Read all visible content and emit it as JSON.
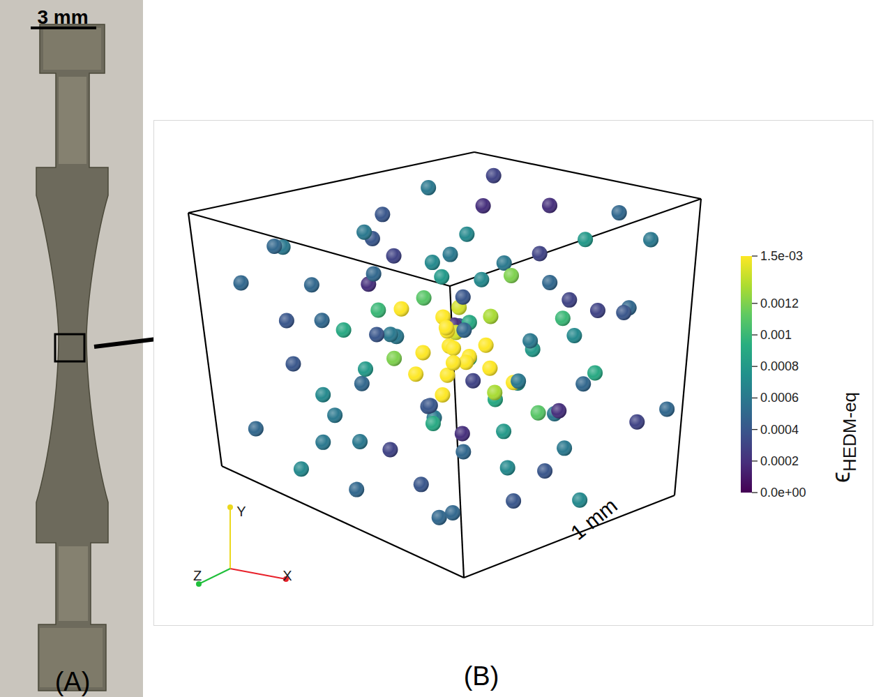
{
  "panel_a": {
    "panel_label": "(A)",
    "scale_bar": "3 mm"
  },
  "chart_data": {
    "type": "scatter3d",
    "panel_label": "(B)",
    "box_label": "1 mm",
    "axes": [
      "X",
      "Y",
      "Z"
    ],
    "colorbar": {
      "title": "ϵ",
      "title_subscript": "HEDM-eq",
      "range": [
        0,
        0.0015
      ],
      "ticks": [
        {
          "value": 0,
          "label": "0.0e+00"
        },
        0.0002,
        0.0004,
        0.0006,
        0.0008,
        0.001,
        0.0012,
        {
          "value": 0.0015,
          "label": "1.5e-03"
        }
      ]
    },
    "points": [
      {
        "x": 0.5,
        "y": 0.52,
        "z": 0.48,
        "value": 0.0015
      },
      {
        "x": 0.45,
        "y": 0.55,
        "z": 0.52,
        "value": 0.0015
      },
      {
        "x": 0.55,
        "y": 0.47,
        "z": 0.5,
        "value": 0.0015
      },
      {
        "x": 0.48,
        "y": 0.45,
        "z": 0.58,
        "value": 0.0015
      },
      {
        "x": 0.52,
        "y": 0.6,
        "z": 0.45,
        "value": 0.0015
      },
      {
        "x": 0.42,
        "y": 0.48,
        "z": 0.45,
        "value": 0.0015
      },
      {
        "x": 0.58,
        "y": 0.55,
        "z": 0.42,
        "value": 0.0015
      },
      {
        "x": 0.47,
        "y": 0.4,
        "z": 0.5,
        "value": 0.0015
      },
      {
        "x": 0.53,
        "y": 0.5,
        "z": 0.6,
        "value": 0.0015
      },
      {
        "x": 0.4,
        "y": 0.58,
        "z": 0.55,
        "value": 0.0015
      },
      {
        "x": 0.6,
        "y": 0.45,
        "z": 0.55,
        "value": 0.0015
      },
      {
        "x": 0.5,
        "y": 0.65,
        "z": 0.52,
        "value": 0.0014
      },
      {
        "x": 0.44,
        "y": 0.42,
        "z": 0.4,
        "value": 0.0015
      },
      {
        "x": 0.57,
        "y": 0.62,
        "z": 0.58,
        "value": 0.0013
      },
      {
        "x": 0.38,
        "y": 0.5,
        "z": 0.62,
        "value": 0.0014
      },
      {
        "x": 0.62,
        "y": 0.52,
        "z": 0.38,
        "value": 0.0015
      },
      {
        "x": 0.5,
        "y": 0.35,
        "z": 0.45,
        "value": 0.0015
      },
      {
        "x": 0.35,
        "y": 0.45,
        "z": 0.4,
        "value": 0.0012
      },
      {
        "x": 0.65,
        "y": 0.4,
        "z": 0.6,
        "value": 0.0015
      },
      {
        "x": 0.46,
        "y": 0.7,
        "z": 0.42,
        "value": 0.0011
      },
      {
        "x": 0.55,
        "y": 0.33,
        "z": 0.62,
        "value": 0.0013
      },
      {
        "x": 0.3,
        "y": 0.6,
        "z": 0.48,
        "value": 0.0015
      },
      {
        "x": 0.1,
        "y": 0.85,
        "z": 0.2,
        "value": 0.0005
      },
      {
        "x": 0.15,
        "y": 0.9,
        "z": 0.55,
        "value": 0.0004
      },
      {
        "x": 0.22,
        "y": 0.78,
        "z": 0.8,
        "value": 0.0007
      },
      {
        "x": 0.08,
        "y": 0.7,
        "z": 0.65,
        "value": 0.0003
      },
      {
        "x": 0.3,
        "y": 0.92,
        "z": 0.35,
        "value": 0.0006
      },
      {
        "x": 0.35,
        "y": 0.8,
        "z": 0.1,
        "value": 0.0005
      },
      {
        "x": 0.4,
        "y": 0.95,
        "z": 0.7,
        "value": 0.0002
      },
      {
        "x": 0.18,
        "y": 0.6,
        "z": 0.15,
        "value": 0.0004
      },
      {
        "x": 0.25,
        "y": 0.65,
        "z": 0.92,
        "value": 0.0006
      },
      {
        "x": 0.05,
        "y": 0.5,
        "z": 0.4,
        "value": 0.0005
      },
      {
        "x": 0.12,
        "y": 0.4,
        "z": 0.85,
        "value": 0.0002
      },
      {
        "x": 0.2,
        "y": 0.3,
        "z": 0.25,
        "value": 0.0007
      },
      {
        "x": 0.28,
        "y": 0.2,
        "z": 0.6,
        "value": 0.0004
      },
      {
        "x": 0.06,
        "y": 0.15,
        "z": 0.1,
        "value": 0.0005
      },
      {
        "x": 0.15,
        "y": 0.08,
        "z": 0.75,
        "value": 0.0006
      },
      {
        "x": 0.32,
        "y": 0.1,
        "z": 0.4,
        "value": 0.0003
      },
      {
        "x": 0.38,
        "y": 0.25,
        "z": 0.88,
        "value": 0.0008
      },
      {
        "x": 0.42,
        "y": 0.05,
        "z": 0.15,
        "value": 0.0005
      },
      {
        "x": 0.48,
        "y": 0.15,
        "z": 0.95,
        "value": 0.0006
      },
      {
        "x": 0.55,
        "y": 0.08,
        "z": 0.3,
        "value": 0.0004
      },
      {
        "x": 0.6,
        "y": 0.22,
        "z": 0.85,
        "value": 0.0002
      },
      {
        "x": 0.68,
        "y": 0.12,
        "z": 0.55,
        "value": 0.0007
      },
      {
        "x": 0.72,
        "y": 0.05,
        "z": 0.2,
        "value": 0.0005
      },
      {
        "x": 0.78,
        "y": 0.18,
        "z": 0.7,
        "value": 0.0006
      },
      {
        "x": 0.85,
        "y": 0.1,
        "z": 0.4,
        "value": 0.0004
      },
      {
        "x": 0.9,
        "y": 0.25,
        "z": 0.9,
        "value": 0.0003
      },
      {
        "x": 0.95,
        "y": 0.08,
        "z": 0.6,
        "value": 0.0007
      },
      {
        "x": 0.88,
        "y": 0.35,
        "z": 0.15,
        "value": 0.0005
      },
      {
        "x": 0.8,
        "y": 0.42,
        "z": 0.8,
        "value": 0.0009
      },
      {
        "x": 0.92,
        "y": 0.55,
        "z": 0.35,
        "value": 0.0006
      },
      {
        "x": 0.96,
        "y": 0.68,
        "z": 0.75,
        "value": 0.0004
      },
      {
        "x": 0.85,
        "y": 0.75,
        "z": 0.2,
        "value": 0.0005
      },
      {
        "x": 0.75,
        "y": 0.88,
        "z": 0.6,
        "value": 0.0003
      },
      {
        "x": 0.7,
        "y": 0.95,
        "z": 0.3,
        "value": 0.0006
      },
      {
        "x": 0.62,
        "y": 0.82,
        "z": 0.9,
        "value": 0.0008
      },
      {
        "x": 0.58,
        "y": 0.9,
        "z": 0.12,
        "value": 0.0005
      },
      {
        "x": 0.65,
        "y": 0.72,
        "z": 0.05,
        "value": 0.0004
      },
      {
        "x": 0.52,
        "y": 0.85,
        "z": 0.4,
        "value": 0.0007
      },
      {
        "x": 0.45,
        "y": 0.8,
        "z": 0.22,
        "value": 0.0002
      },
      {
        "x": 0.82,
        "y": 0.62,
        "z": 0.5,
        "value": 0.0006
      },
      {
        "x": 0.9,
        "y": 0.45,
        "z": 0.65,
        "value": 0.0005
      },
      {
        "x": 0.76,
        "y": 0.3,
        "z": 0.45,
        "value": 0.0008
      },
      {
        "x": 0.7,
        "y": 0.6,
        "z": 0.75,
        "value": 0.001
      },
      {
        "x": 0.66,
        "y": 0.35,
        "z": 0.25,
        "value": 0.0009
      },
      {
        "x": 0.3,
        "y": 0.35,
        "z": 0.75,
        "value": 0.001
      },
      {
        "x": 0.25,
        "y": 0.55,
        "z": 0.3,
        "value": 0.0009
      },
      {
        "x": 0.34,
        "y": 0.7,
        "z": 0.6,
        "value": 0.0008
      },
      {
        "x": 0.72,
        "y": 0.7,
        "z": 0.35,
        "value": 0.0009
      },
      {
        "x": 0.2,
        "y": 0.45,
        "z": 0.55,
        "value": 0.0006
      },
      {
        "x": 0.8,
        "y": 0.5,
        "z": 0.1,
        "value": 0.0004
      },
      {
        "x": 0.1,
        "y": 0.25,
        "z": 0.5,
        "value": 0.0005
      },
      {
        "x": 0.15,
        "y": 0.95,
        "z": 0.95,
        "value": 0.0003
      },
      {
        "x": 0.95,
        "y": 0.92,
        "z": 0.1,
        "value": 0.0004
      },
      {
        "x": 0.05,
        "y": 0.92,
        "z": 0.8,
        "value": 0.0006
      },
      {
        "x": 0.98,
        "y": 0.3,
        "z": 0.95,
        "value": 0.0005
      },
      {
        "x": 0.03,
        "y": 0.35,
        "z": 0.95,
        "value": 0.0004
      },
      {
        "x": 0.12,
        "y": 0.55,
        "z": 0.95,
        "value": 0.0007
      },
      {
        "x": 0.4,
        "y": 0.6,
        "z": 0.97,
        "value": 0.0005
      },
      {
        "x": 0.62,
        "y": 0.55,
        "z": 0.97,
        "value": 0.0003
      },
      {
        "x": 0.85,
        "y": 0.85,
        "z": 0.95,
        "value": 0.0006
      },
      {
        "x": 0.55,
        "y": 0.3,
        "z": 0.05,
        "value": 0.0006
      },
      {
        "x": 0.3,
        "y": 0.5,
        "z": 0.05,
        "value": 0.0004
      },
      {
        "x": 0.12,
        "y": 0.75,
        "z": 0.05,
        "value": 0.0005
      },
      {
        "x": 0.98,
        "y": 0.8,
        "z": 0.5,
        "value": 0.0003
      },
      {
        "x": 0.02,
        "y": 0.8,
        "z": 0.3,
        "value": 0.0006
      },
      {
        "x": 0.45,
        "y": 0.25,
        "z": 0.72,
        "value": 0.0009
      },
      {
        "x": 0.65,
        "y": 0.5,
        "z": 0.85,
        "value": 0.0007
      },
      {
        "x": 0.35,
        "y": 0.3,
        "z": 0.15,
        "value": 0.0006
      },
      {
        "x": 0.58,
        "y": 0.75,
        "z": 0.65,
        "value": 0.0012
      },
      {
        "x": 0.42,
        "y": 0.68,
        "z": 0.28,
        "value": 0.001
      },
      {
        "x": 0.68,
        "y": 0.28,
        "z": 0.68,
        "value": 0.0011
      },
      {
        "x": 0.28,
        "y": 0.4,
        "z": 0.35,
        "value": 0.0008
      },
      {
        "x": 0.75,
        "y": 0.55,
        "z": 0.58,
        "value": 0.0008
      },
      {
        "x": 0.22,
        "y": 0.85,
        "z": 0.45,
        "value": 0.0004
      },
      {
        "x": 0.88,
        "y": 0.65,
        "z": 0.85,
        "value": 0.0005
      },
      {
        "x": 0.48,
        "y": 0.92,
        "z": 0.88,
        "value": 0.0002
      },
      {
        "x": 0.55,
        "y": 0.65,
        "z": 0.2,
        "value": 0.0006
      },
      {
        "x": 0.18,
        "y": 0.2,
        "z": 0.88,
        "value": 0.0003
      },
      {
        "x": 0.92,
        "y": 0.18,
        "z": 0.05,
        "value": 0.0005
      },
      {
        "x": 0.38,
        "y": 0.12,
        "z": 0.65,
        "value": 0.0002
      },
      {
        "x": 0.08,
        "y": 0.05,
        "z": 0.35,
        "value": 0.0006
      },
      {
        "x": 0.62,
        "y": 0.03,
        "z": 0.78,
        "value": 0.0004
      },
      {
        "x": 0.78,
        "y": 0.95,
        "z": 0.88,
        "value": 0.0005
      },
      {
        "x": 0.26,
        "y": 0.08,
        "z": 0.08,
        "value": 0.0007
      }
    ]
  }
}
